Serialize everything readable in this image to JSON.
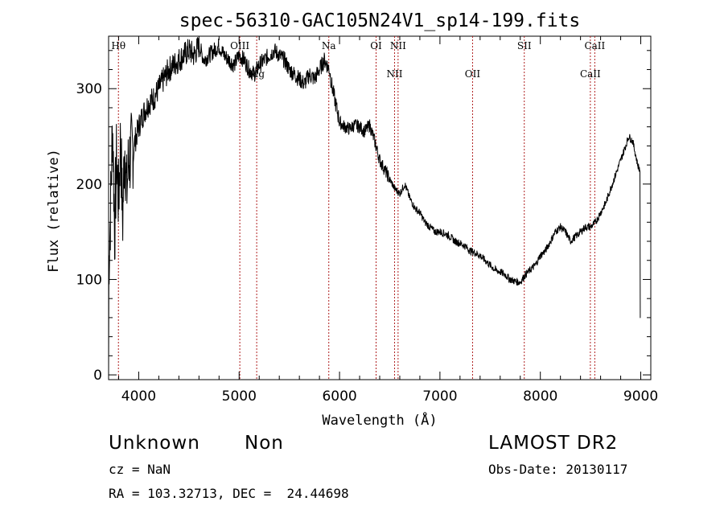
{
  "chart_data": {
    "type": "line",
    "title": "spec-56310-GAC105N24V1_sp14-199.fits",
    "xlabel": "Wavelength (Å)",
    "ylabel": "Flux (relative)",
    "xlim": [
      3700,
      9100
    ],
    "ylim": [
      -5,
      355
    ],
    "x_ticks": [
      4000,
      5000,
      6000,
      7000,
      8000,
      9000
    ],
    "y_ticks": [
      0,
      100,
      200,
      300
    ],
    "grid": false,
    "series": [
      {
        "x": [
          3700,
          3720,
          3740,
          3760,
          3780,
          3800,
          3820,
          3840,
          3860,
          3880,
          3900,
          3950,
          4000,
          4050,
          4100,
          4150,
          4200,
          4250,
          4300,
          4350,
          4400,
          4450,
          4500,
          4550,
          4600,
          4650,
          4700,
          4750,
          4800,
          4850,
          4900,
          4950,
          5000,
          5050,
          5100,
          5150,
          5200,
          5250,
          5300,
          5350,
          5400,
          5450,
          5500,
          5550,
          5600,
          5650,
          5700,
          5750,
          5800,
          5850,
          5900,
          5920,
          5950,
          6000,
          6050,
          6100,
          6150,
          6200,
          6250,
          6300,
          6350,
          6400,
          6450,
          6500,
          6550,
          6600,
          6650,
          6700,
          6750,
          6800,
          6850,
          6900,
          6950,
          7000,
          7050,
          7100,
          7150,
          7200,
          7250,
          7300,
          7350,
          7400,
          7450,
          7500,
          7550,
          7600,
          7650,
          7700,
          7750,
          7800,
          7850,
          7900,
          7950,
          8000,
          8050,
          8100,
          8150,
          8200,
          8250,
          8300,
          8350,
          8400,
          8450,
          8500,
          8550,
          8600,
          8650,
          8700,
          8750,
          8800,
          8850,
          8880,
          8920,
          8950,
          8970,
          8990,
          9000
        ],
        "y": [
          110,
          175,
          265,
          150,
          230,
          180,
          250,
          160,
          245,
          190,
          225,
          240,
          260,
          275,
          285,
          290,
          300,
          310,
          320,
          325,
          330,
          335,
          340,
          335,
          345,
          330,
          335,
          340,
          345,
          335,
          330,
          325,
          335,
          330,
          320,
          315,
          325,
          330,
          335,
          340,
          335,
          330,
          320,
          315,
          310,
          305,
          315,
          310,
          320,
          330,
          320,
          305,
          290,
          265,
          260,
          258,
          262,
          260,
          255,
          262,
          245,
          225,
          215,
          205,
          195,
          190,
          200,
          185,
          175,
          170,
          160,
          155,
          150,
          150,
          148,
          145,
          140,
          138,
          135,
          130,
          128,
          125,
          120,
          115,
          110,
          108,
          105,
          100,
          98,
          97,
          105,
          110,
          115,
          125,
          130,
          140,
          150,
          155,
          150,
          140,
          145,
          150,
          155,
          155,
          160,
          170,
          180,
          195,
          210,
          225,
          240,
          250,
          245,
          230,
          220,
          215,
          220
        ]
      }
    ],
    "emission_lines": [
      {
        "label": "Hθ",
        "wavelength": 3798,
        "row": "upper"
      },
      {
        "label": "OIII",
        "wavelength": 5007,
        "row": "upper"
      },
      {
        "label": "Mg",
        "wavelength": 5175,
        "row": "lower"
      },
      {
        "label": "Na",
        "wavelength": 5893,
        "row": "upper"
      },
      {
        "label": "OI",
        "wavelength": 6364,
        "row": "upper"
      },
      {
        "label": "NII",
        "wavelength": 6548,
        "row": "lower"
      },
      {
        "label": "NII",
        "wavelength": 6583,
        "row": "upper"
      },
      {
        "label": "OII",
        "wavelength": 7325,
        "row": "lower"
      },
      {
        "label": "SII",
        "wavelength": 7840,
        "row": "upper"
      },
      {
        "label": "CaII",
        "wavelength": 8498,
        "row": "lower"
      },
      {
        "label": "CaII",
        "wavelength": 8542,
        "row": "upper"
      }
    ],
    "line_color": "#000000",
    "marker_color": "#b02020"
  },
  "info": {
    "object_class": "Unknown",
    "object_subclass": "Non",
    "survey": "LAMOST DR2",
    "cz": "cz = NaN",
    "obs_date": "Obs-Date: 20130117",
    "coords": "RA = 103.32713, DEC =  24.44698"
  }
}
